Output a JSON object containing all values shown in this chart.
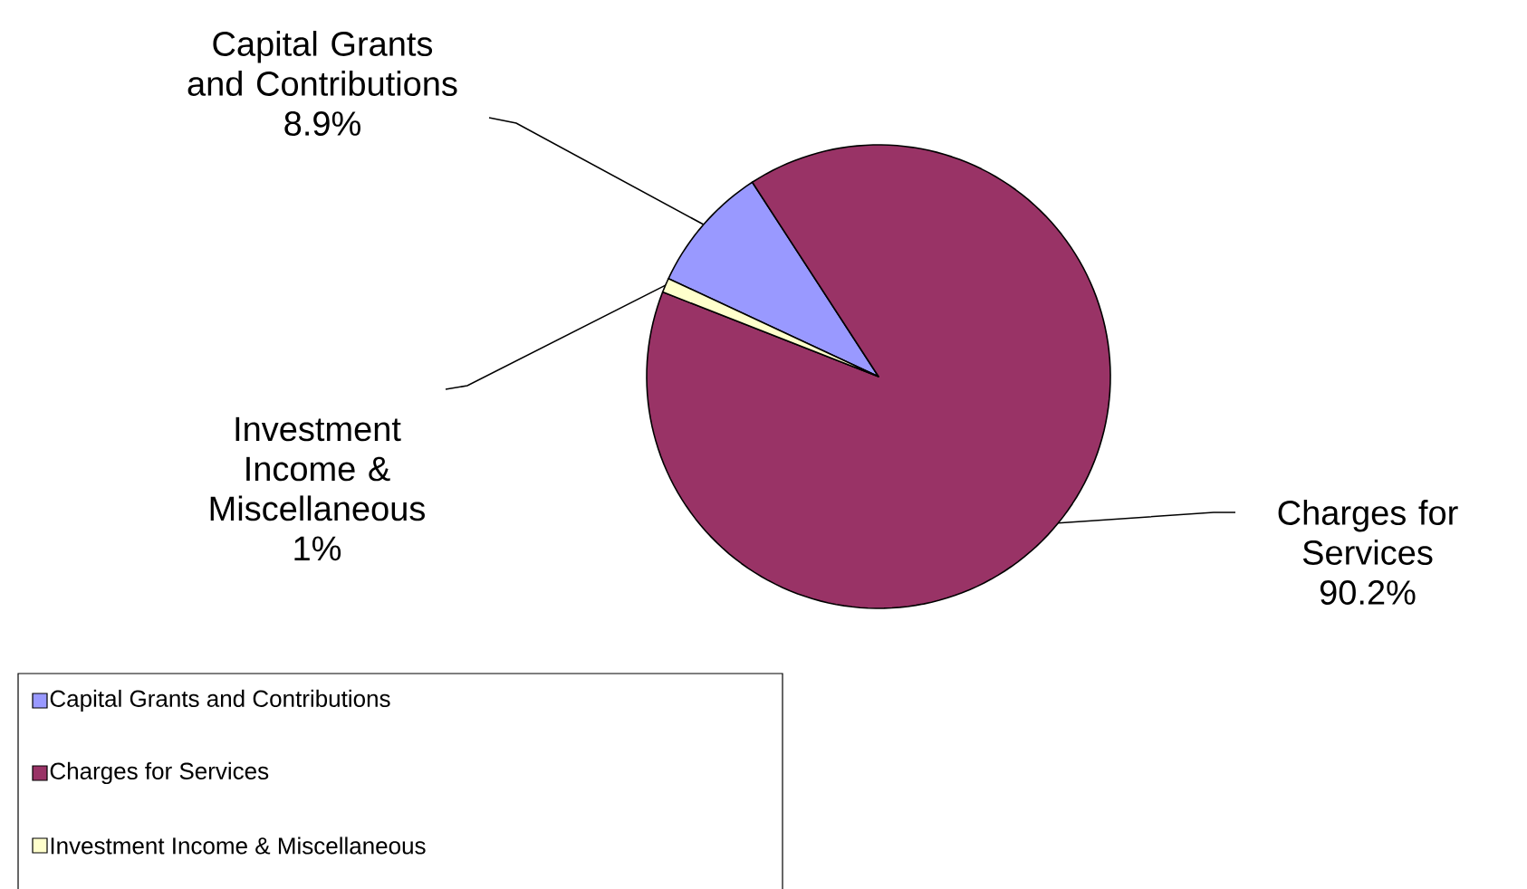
{
  "chart_data": {
    "type": "pie",
    "categories": [
      "Capital Grants and Contributions",
      "Charges for Services",
      "Investment Income & Miscellaneous"
    ],
    "values": [
      8.9,
      90.2,
      1
    ],
    "value_labels": [
      "8.9%",
      "90.2%",
      "1%"
    ],
    "colors": [
      "#9999ff",
      "#993366",
      "#ffffcc"
    ],
    "legend": "bottom left"
  }
}
